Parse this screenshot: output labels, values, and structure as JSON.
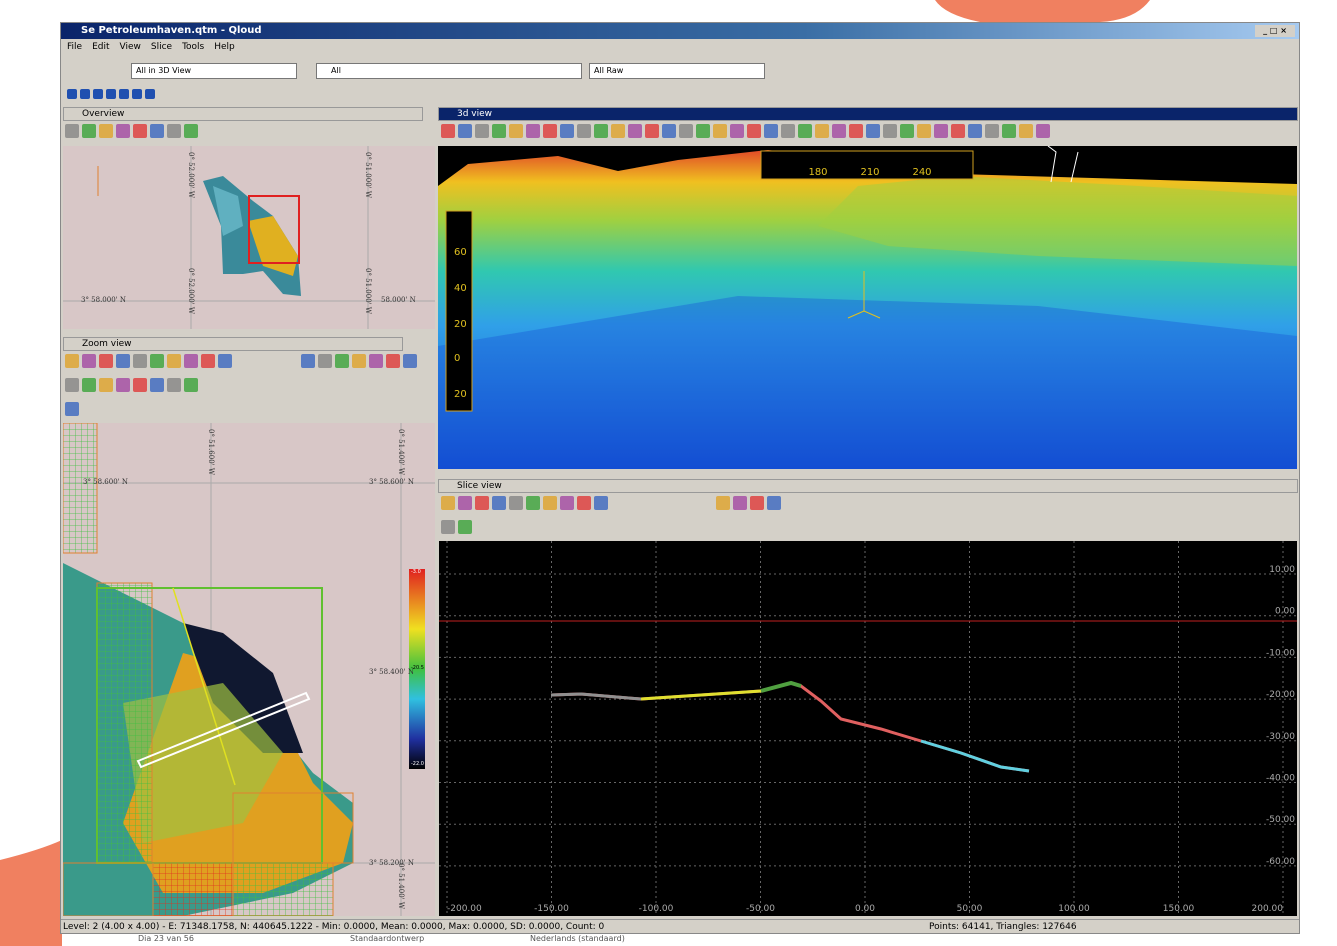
{
  "window": {
    "title": "Se Petroleumhaven.qtm - Qloud",
    "menu": [
      "File",
      "Edit",
      "View",
      "Slice",
      "Tools",
      "Help"
    ]
  },
  "toolbar": {
    "view_select": "All in 3D View",
    "layer_select": "All",
    "data_select": "All Raw"
  },
  "overview": {
    "title": "Overview",
    "labels": [
      "3° 58.000' N",
      "58.000' N",
      "0° 52.000' W",
      "0° 51.000' W",
      "0° 52.000' W",
      "0° 51.000' W"
    ]
  },
  "zoom_view": {
    "title": "Zoom view",
    "labels": [
      "3° 58.600' N",
      "3° 58.600' N",
      "3° 58.400' N",
      "3° 58.200' N",
      "0° 51.600' W",
      "0° 51.400' W",
      "0° 51.400' W"
    ],
    "color_scale": [
      "-3.0",
      "-20.5",
      "-22.0"
    ]
  },
  "view3d": {
    "title": "3d view",
    "scale_x": [
      "180",
      "210",
      "240"
    ],
    "scale_y": [
      "60",
      "40",
      "20",
      "0",
      "20"
    ]
  },
  "slice_view": {
    "title": "Slice view",
    "x_labels": [
      "-200.00",
      "-150.00",
      "-100.00",
      "-50.00",
      "0.00",
      "50.00",
      "100.00",
      "150.00",
      "200.00"
    ],
    "y_labels": [
      "10.00",
      "0.00",
      "-10.00",
      "-20.00",
      "-30.00",
      "-40.00",
      "-50.00",
      "-60.00"
    ]
  },
  "status": {
    "left": "Level: 2 (4.00 x 4.00) - E: 71348.1758, N: 440645.1222 - Min: 0.0000, Mean: 0.0000, Max: 0.0000, SD: 0.0000, Count: 0",
    "right": "Points: 64141, Triangles: 127646"
  },
  "taskbar": [
    "Dia 23 van 56",
    "Standaardontwerp",
    "Nederlands (standaard)"
  ]
}
